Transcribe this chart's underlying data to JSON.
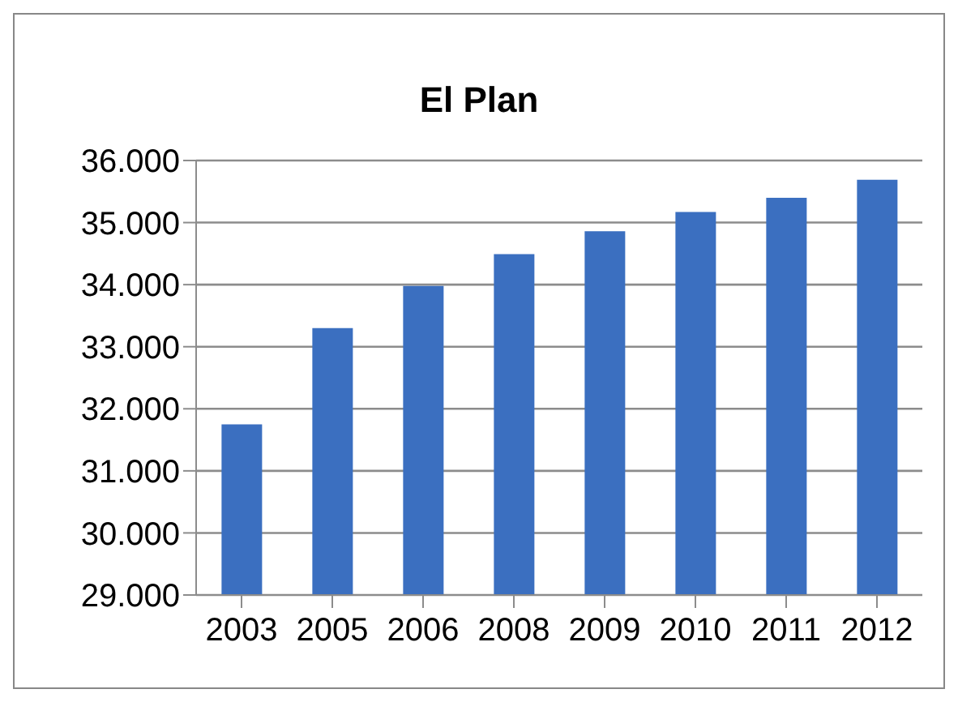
{
  "chart_data": {
    "type": "bar",
    "title": "El Plan",
    "categories": [
      "2003",
      "2005",
      "2006",
      "2008",
      "2009",
      "2010",
      "2011",
      "2012"
    ],
    "values": [
      31750,
      33300,
      33980,
      34490,
      34860,
      35170,
      35400,
      35690
    ],
    "color": "#3b6fc0",
    "ylim": [
      29000,
      36000
    ],
    "yticks": [
      {
        "value": 29000,
        "label": "29.000"
      },
      {
        "value": 30000,
        "label": "30.000"
      },
      {
        "value": 31000,
        "label": "31.000"
      },
      {
        "value": 32000,
        "label": "32.000"
      },
      {
        "value": 33000,
        "label": "33.000"
      },
      {
        "value": 34000,
        "label": "34.000"
      },
      {
        "value": 35000,
        "label": "35.000"
      },
      {
        "value": 36000,
        "label": "36.000"
      }
    ],
    "grid": "y",
    "legend": false
  }
}
